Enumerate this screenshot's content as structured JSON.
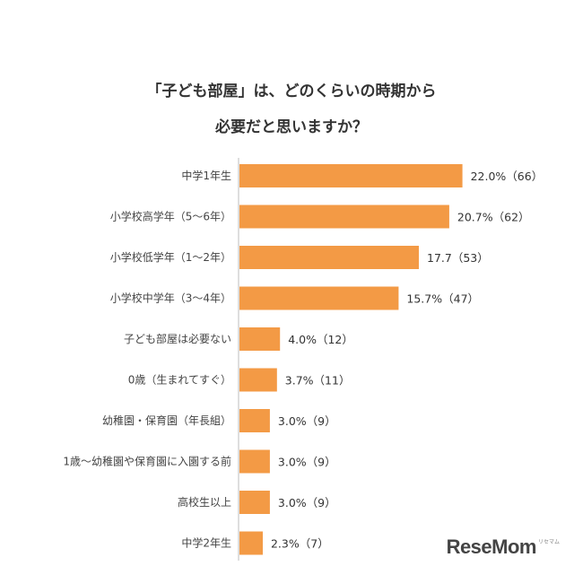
{
  "chart_data": {
    "type": "bar",
    "orientation": "horizontal",
    "title_line1": "「子ども部屋」は、どのくらいの時期から",
    "title_line2": "必要だと思いますか？",
    "categories": [
      "中学1年生",
      "小学校高学年（5～6年）",
      "小学校低学年（1～2年）",
      "小学校中学年（3～4年）",
      "子ども部屋は必要ない",
      "0歳（生まれてすぐ）",
      "幼稚園・保育園（年長組）",
      "1歳～幼稚園や保育園に入園する前",
      "高校生以上",
      "中学2年生"
    ],
    "values": [
      22.0,
      20.7,
      17.7,
      15.7,
      4.0,
      3.7,
      3.0,
      3.0,
      3.0,
      2.3
    ],
    "value_labels": [
      "22.0%（66）",
      "20.7%（62）",
      "17.7（53）",
      "15.7%（47）",
      "4.0%（12）",
      "3.7%（11）",
      "3.0%（9）",
      "3.0%（9）",
      "3.0%（9）",
      "2.3%（7）"
    ],
    "bar_color": "#f39a45",
    "axis_color": "#bdbdbd",
    "grid": false,
    "legend": "none"
  },
  "logo": {
    "text": "ReseMom",
    "sub": "リセマム"
  }
}
